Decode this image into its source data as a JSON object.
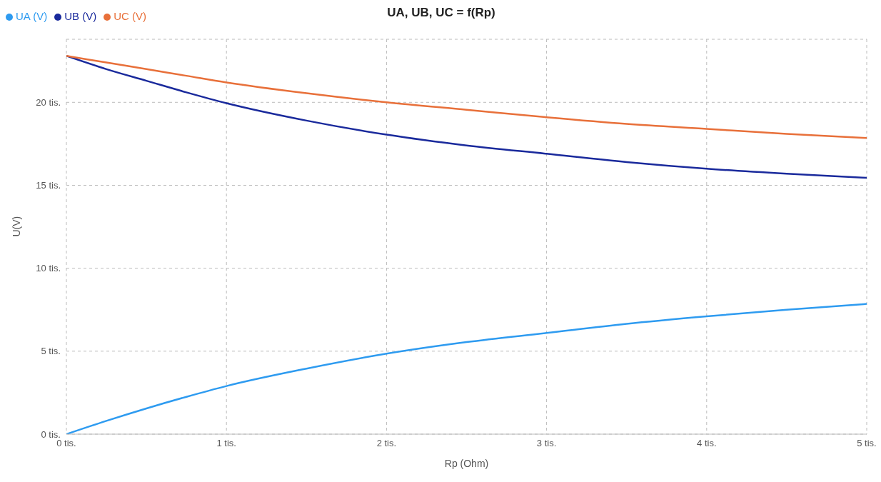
{
  "chart_data": {
    "type": "line",
    "title": "UA, UB, UC = f(Rp)",
    "xlabel": "Rp (Ohm)",
    "ylabel": "U(V)",
    "x": [
      0,
      0.25,
      0.5,
      0.75,
      1,
      1.5,
      2,
      2.5,
      3,
      3.5,
      4,
      4.5,
      5
    ],
    "series": [
      {
        "name": "UA (V)",
        "color": "#2e9bf0",
        "values": [
          0,
          0.8,
          1.55,
          2.25,
          2.9,
          3.95,
          4.85,
          5.55,
          6.1,
          6.65,
          7.1,
          7.5,
          7.85
        ]
      },
      {
        "name": "UB (V)",
        "color": "#1a2a9c",
        "values": [
          22.8,
          22,
          21.3,
          20.6,
          19.95,
          18.9,
          18.05,
          17.4,
          16.9,
          16.4,
          16,
          15.7,
          15.45
        ]
      },
      {
        "name": "UC (V)",
        "color": "#e8703a",
        "values": [
          22.8,
          22.4,
          22,
          21.6,
          21.2,
          20.55,
          20,
          19.55,
          19.1,
          18.7,
          18.4,
          18.1,
          17.85
        ]
      }
    ],
    "xlim": [
      0,
      5
    ],
    "ylim": [
      0,
      23.8
    ],
    "xticks": [
      {
        "value": 0,
        "label": "0 tis."
      },
      {
        "value": 1,
        "label": "1 tis."
      },
      {
        "value": 2,
        "label": "2 tis."
      },
      {
        "value": 3,
        "label": "3 tis."
      },
      {
        "value": 4,
        "label": "4 tis."
      },
      {
        "value": 5,
        "label": "5 tis."
      }
    ],
    "yticks": [
      {
        "value": 0,
        "label": "0 tis."
      },
      {
        "value": 5,
        "label": "5 tis."
      },
      {
        "value": 10,
        "label": "10 tis."
      },
      {
        "value": 15,
        "label": "15 tis."
      },
      {
        "value": 20,
        "label": "20 tis."
      }
    ],
    "grid": true,
    "legend": "top left",
    "line_style": "solid"
  }
}
